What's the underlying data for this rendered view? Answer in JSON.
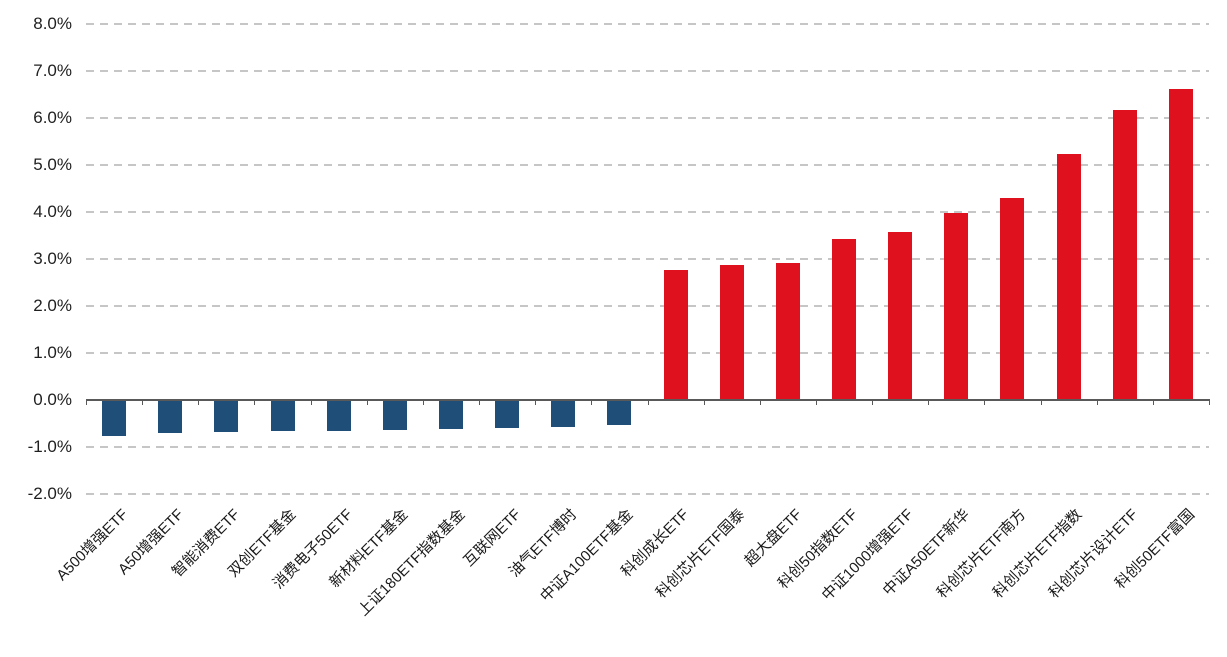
{
  "chart_data": {
    "type": "bar",
    "title": "",
    "xlabel": "",
    "ylabel": "",
    "legend": "none",
    "grid": "horizontal-dashed",
    "ylim": [
      -2.0,
      8.0
    ],
    "ytick_step": 1.0,
    "ytick_labels": [
      "8.0%",
      "7.0%",
      "6.0%",
      "5.0%",
      "4.0%",
      "3.0%",
      "2.0%",
      "1.0%",
      "0.0%",
      "-1.0%",
      "-2.0%"
    ],
    "categories": [
      "A500增强ETF",
      "A50增强ETF",
      "智能消费ETF",
      "双创ETF基金",
      "消费电子50ETF",
      "新材料ETF基金",
      "上证180ETF指数基金",
      "互联网ETF",
      "油气ETF博时",
      "中证A100ETF基金",
      "科创成长ETF",
      "科创芯片ETF国泰",
      "超大盘ETF",
      "科创50指数ETF",
      "中证1000增强ETF",
      "中证A50ETF新华",
      "科创芯片ETF南方",
      "科创芯片ETF指数",
      "科创芯片设计ETF",
      "科创50ETF富国"
    ],
    "values": [
      -0.76,
      -0.7,
      -0.69,
      -0.67,
      -0.66,
      -0.64,
      -0.62,
      -0.6,
      -0.57,
      -0.54,
      2.76,
      2.87,
      2.91,
      3.42,
      3.58,
      3.98,
      4.29,
      5.24,
      6.16,
      6.62
    ],
    "value_unit": "%",
    "colors": {
      "negative_bar": "#1F4E79",
      "positive_bar": "#E0111E",
      "gridline": "#C6C6C6",
      "axis": "#595959",
      "tick_text": "#1F1F1F",
      "category_text": "#1A1A1A",
      "background": "#FFFFFF"
    }
  }
}
